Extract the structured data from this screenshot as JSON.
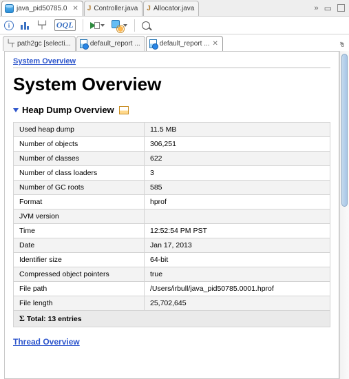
{
  "editor_tabs": {
    "t0": {
      "label": "java_pid50785.0"
    },
    "t1": {
      "label": "Controller.java"
    },
    "t2": {
      "label": "Allocator.java"
    },
    "overflow_indicator": "»"
  },
  "sub_tabs": {
    "s0": {
      "label": "path2gc [selecti..."
    },
    "s1": {
      "label": "default_report ..."
    },
    "s2": {
      "label": "default_report  ..."
    },
    "overflow_indicator": "»",
    "overflow_count": "8"
  },
  "breadcrumb": "System Overview",
  "page_title": "System Overview",
  "section_title": "Heap Dump Overview",
  "heap_table": {
    "rows": [
      {
        "k": "Used heap dump",
        "v": "11.5 MB"
      },
      {
        "k": "Number of objects",
        "v": "306,251"
      },
      {
        "k": "Number of classes",
        "v": "622"
      },
      {
        "k": "Number of class loaders",
        "v": "3"
      },
      {
        "k": "Number of GC roots",
        "v": "585"
      },
      {
        "k": "Format",
        "v": "hprof"
      },
      {
        "k": "JVM version",
        "v": ""
      },
      {
        "k": "Time",
        "v": "12:52:54 PM PST"
      },
      {
        "k": "Date",
        "v": "Jan 17, 2013"
      },
      {
        "k": "Identifier size",
        "v": "64-bit"
      },
      {
        "k": "Compressed object pointers",
        "v": "true"
      },
      {
        "k": "File path",
        "v": "/Users/irbull/java_pid50785.0001.hprof"
      },
      {
        "k": "File length",
        "v": "25,702,645"
      }
    ],
    "total_label": "Total: 13 entries"
  },
  "next_section": "Thread Overview",
  "colors": {
    "link": "#2d55cc",
    "border": "#d3d3d3",
    "row_alt": "#f3f3f3",
    "total_bg": "#eaeaea"
  }
}
